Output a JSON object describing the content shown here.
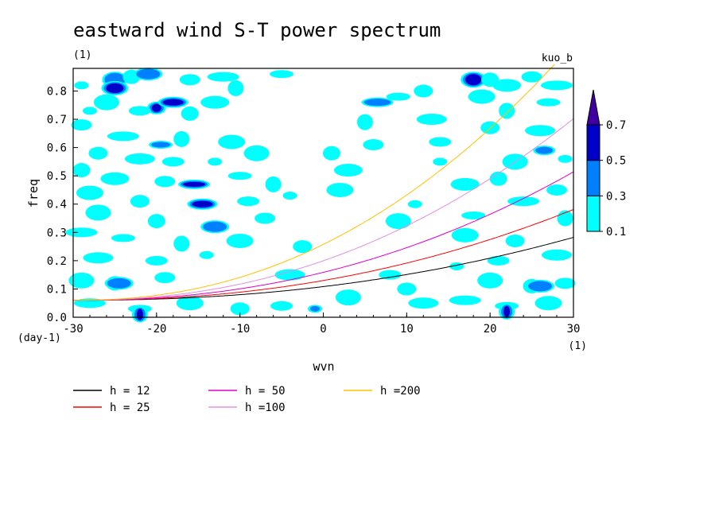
{
  "figure": {
    "title": "eastward wind S-T power spectrum",
    "left_note": "(1)",
    "right_note": "kuo_b"
  },
  "chart_data": {
    "type": "heatmap",
    "title": "eastward wind S-T power spectrum",
    "xlabel": "wvn",
    "ylabel": "freq",
    "x_unit_label": "(1)",
    "y_unit_label": "(day-1)",
    "xlim": [
      -30,
      30
    ],
    "ylim": [
      0,
      0.88
    ],
    "x_ticks": [
      -30,
      -20,
      -10,
      0,
      10,
      20,
      30
    ],
    "x_tick_labels": [
      "-30",
      "-20",
      "-10",
      "0",
      "10",
      "20",
      "30"
    ],
    "y_ticks": [
      0.0,
      0.1,
      0.2,
      0.3,
      0.4,
      0.5,
      0.6,
      0.7,
      0.8
    ],
    "y_tick_labels": [
      "0.0",
      "0.1",
      "0.2",
      "0.3",
      "0.4",
      "0.5",
      "0.6",
      "0.7",
      "0.8"
    ],
    "colorbar": {
      "levels": [
        0.1,
        0.3,
        0.5,
        0.7
      ],
      "labels": [
        "0.1",
        "0.3",
        "0.5",
        "0.7"
      ],
      "colors": [
        "#00ffff",
        "#0080ff",
        "#0000c8",
        "#4000a0"
      ],
      "extend": "max"
    },
    "curves": [
      {
        "name": "h = 12",
        "h": 12,
        "color": "#000000"
      },
      {
        "name": "h = 25",
        "h": 25,
        "color": "#ff0000"
      },
      {
        "name": "h = 50",
        "h": 50,
        "color": "#e000c8"
      },
      {
        "name": "h =100",
        "h": 100,
        "color": "#e090e0"
      },
      {
        "name": "h =200",
        "h": 200,
        "color": "#ffc000"
      }
    ],
    "power_spots": [
      {
        "x": -29,
        "y": 0.82,
        "level": 0
      },
      {
        "x": -25,
        "y": 0.84,
        "level": 1
      },
      {
        "x": -23,
        "y": 0.85,
        "level": 0
      },
      {
        "x": -21,
        "y": 0.86,
        "level": 1
      },
      {
        "x": -16,
        "y": 0.84,
        "level": 0
      },
      {
        "x": -12,
        "y": 0.85,
        "level": 0
      },
      {
        "x": -5,
        "y": 0.86,
        "level": 0
      },
      {
        "x": -10.5,
        "y": 0.81,
        "level": 0
      },
      {
        "x": -25,
        "y": 0.81,
        "level": 2
      },
      {
        "x": -20,
        "y": 0.74,
        "level": 2
      },
      {
        "x": -18,
        "y": 0.76,
        "level": 2
      },
      {
        "x": -22,
        "y": 0.73,
        "level": 0
      },
      {
        "x": -28,
        "y": 0.73,
        "level": 0
      },
      {
        "x": -26,
        "y": 0.76,
        "level": 0
      },
      {
        "x": -16,
        "y": 0.72,
        "level": 0
      },
      {
        "x": -13,
        "y": 0.76,
        "level": 0
      },
      {
        "x": -29,
        "y": 0.68,
        "level": 0
      },
      {
        "x": -24,
        "y": 0.64,
        "level": 0
      },
      {
        "x": -19.5,
        "y": 0.61,
        "level": 1
      },
      {
        "x": -17,
        "y": 0.63,
        "level": 0
      },
      {
        "x": -11,
        "y": 0.62,
        "level": 0
      },
      {
        "x": -27,
        "y": 0.58,
        "level": 0
      },
      {
        "x": -22,
        "y": 0.56,
        "level": 0
      },
      {
        "x": -18,
        "y": 0.55,
        "level": 0
      },
      {
        "x": -13,
        "y": 0.55,
        "level": 0
      },
      {
        "x": -8,
        "y": 0.58,
        "level": 0
      },
      {
        "x": -29,
        "y": 0.52,
        "level": 0
      },
      {
        "x": -25,
        "y": 0.49,
        "level": 0
      },
      {
        "x": -19,
        "y": 0.48,
        "level": 0
      },
      {
        "x": -15.5,
        "y": 0.47,
        "level": 2
      },
      {
        "x": -10,
        "y": 0.5,
        "level": 0
      },
      {
        "x": -6,
        "y": 0.47,
        "level": 0
      },
      {
        "x": -28,
        "y": 0.44,
        "level": 0
      },
      {
        "x": -22,
        "y": 0.41,
        "level": 0
      },
      {
        "x": -14.5,
        "y": 0.4,
        "level": 2
      },
      {
        "x": -9,
        "y": 0.41,
        "level": 0
      },
      {
        "x": -4,
        "y": 0.43,
        "level": 0
      },
      {
        "x": -27,
        "y": 0.37,
        "level": 0
      },
      {
        "x": -20,
        "y": 0.34,
        "level": 0
      },
      {
        "x": -13,
        "y": 0.32,
        "level": 1
      },
      {
        "x": -7,
        "y": 0.35,
        "level": 0
      },
      {
        "x": -29,
        "y": 0.3,
        "level": 0
      },
      {
        "x": -24,
        "y": 0.28,
        "level": 0
      },
      {
        "x": -17,
        "y": 0.26,
        "level": 0
      },
      {
        "x": -10,
        "y": 0.27,
        "level": 0
      },
      {
        "x": -2.5,
        "y": 0.25,
        "level": 0
      },
      {
        "x": -27,
        "y": 0.21,
        "level": 0
      },
      {
        "x": -20,
        "y": 0.2,
        "level": 0
      },
      {
        "x": -14,
        "y": 0.22,
        "level": 0
      },
      {
        "x": -29,
        "y": 0.13,
        "level": 0
      },
      {
        "x": -25,
        "y": 0.12,
        "level": 0
      },
      {
        "x": -24.5,
        "y": 0.12,
        "level": 1
      },
      {
        "x": -19,
        "y": 0.14,
        "level": 0
      },
      {
        "x": -28,
        "y": 0.05,
        "level": 0
      },
      {
        "x": -22,
        "y": 0.03,
        "level": 0
      },
      {
        "x": -22,
        "y": 0.01,
        "level": 2
      },
      {
        "x": -16,
        "y": 0.05,
        "level": 0
      },
      {
        "x": -10,
        "y": 0.03,
        "level": 0
      },
      {
        "x": -4,
        "y": 0.15,
        "level": 0
      },
      {
        "x": -5,
        "y": 0.04,
        "level": 0
      },
      {
        "x": -1,
        "y": 0.03,
        "level": 1
      },
      {
        "x": 3,
        "y": 0.07,
        "level": 0
      },
      {
        "x": 1,
        "y": 0.58,
        "level": 0
      },
      {
        "x": 3,
        "y": 0.52,
        "level": 0
      },
      {
        "x": 6,
        "y": 0.61,
        "level": 0
      },
      {
        "x": 6.5,
        "y": 0.76,
        "level": 1
      },
      {
        "x": 9,
        "y": 0.78,
        "level": 0
      },
      {
        "x": 5,
        "y": 0.69,
        "level": 0
      },
      {
        "x": 2,
        "y": 0.45,
        "level": 0
      },
      {
        "x": 12,
        "y": 0.8,
        "level": 0
      },
      {
        "x": 13,
        "y": 0.7,
        "level": 0
      },
      {
        "x": 14,
        "y": 0.62,
        "level": 0
      },
      {
        "x": 14,
        "y": 0.55,
        "level": 0
      },
      {
        "x": 18,
        "y": 0.84,
        "level": 2
      },
      {
        "x": 20,
        "y": 0.84,
        "level": 0
      },
      {
        "x": 22,
        "y": 0.82,
        "level": 0
      },
      {
        "x": 25,
        "y": 0.85,
        "level": 0
      },
      {
        "x": 28,
        "y": 0.82,
        "level": 0
      },
      {
        "x": 27,
        "y": 0.76,
        "level": 0
      },
      {
        "x": 22,
        "y": 0.73,
        "level": 0
      },
      {
        "x": 19,
        "y": 0.78,
        "level": 0
      },
      {
        "x": 20,
        "y": 0.67,
        "level": 0
      },
      {
        "x": 26,
        "y": 0.66,
        "level": 0
      },
      {
        "x": 26.5,
        "y": 0.59,
        "level": 1
      },
      {
        "x": 29,
        "y": 0.56,
        "level": 0
      },
      {
        "x": 23,
        "y": 0.55,
        "level": 0
      },
      {
        "x": 21,
        "y": 0.49,
        "level": 0
      },
      {
        "x": 17,
        "y": 0.47,
        "level": 0
      },
      {
        "x": 28,
        "y": 0.45,
        "level": 0
      },
      {
        "x": 24,
        "y": 0.41,
        "level": 0
      },
      {
        "x": 18,
        "y": 0.36,
        "level": 0
      },
      {
        "x": 29,
        "y": 0.35,
        "level": 0
      },
      {
        "x": 17,
        "y": 0.29,
        "level": 0
      },
      {
        "x": 23,
        "y": 0.27,
        "level": 0
      },
      {
        "x": 28,
        "y": 0.22,
        "level": 0
      },
      {
        "x": 21,
        "y": 0.2,
        "level": 0
      },
      {
        "x": 16,
        "y": 0.18,
        "level": 0
      },
      {
        "x": 20,
        "y": 0.13,
        "level": 0
      },
      {
        "x": 25,
        "y": 0.11,
        "level": 0
      },
      {
        "x": 26,
        "y": 0.11,
        "level": 1
      },
      {
        "x": 29,
        "y": 0.12,
        "level": 0
      },
      {
        "x": 17,
        "y": 0.06,
        "level": 0
      },
      {
        "x": 22,
        "y": 0.04,
        "level": 0
      },
      {
        "x": 22,
        "y": 0.02,
        "level": 2
      },
      {
        "x": 27,
        "y": 0.05,
        "level": 0
      },
      {
        "x": 10,
        "y": 0.1,
        "level": 0
      },
      {
        "x": 12,
        "y": 0.05,
        "level": 0
      },
      {
        "x": 8,
        "y": 0.15,
        "level": 0
      },
      {
        "x": 11,
        "y": 0.4,
        "level": 0
      },
      {
        "x": 9,
        "y": 0.34,
        "level": 0
      }
    ]
  },
  "legend": [
    {
      "label": "h = 12",
      "color": "#000000"
    },
    {
      "label": "h = 25",
      "color": "#ff0000"
    },
    {
      "label": "h = 50",
      "color": "#e000c8"
    },
    {
      "label": "h =100",
      "color": "#e090e0"
    },
    {
      "label": "h =200",
      "color": "#ffc000"
    }
  ]
}
